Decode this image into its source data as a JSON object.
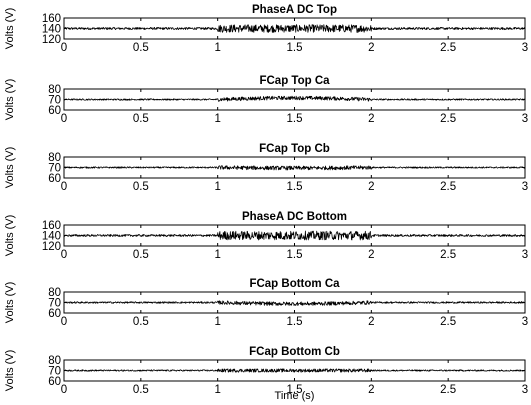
{
  "chart_data": {
    "type": "line",
    "time_range": [
      0,
      3
    ],
    "xticks": [
      0,
      0.5,
      1,
      1.5,
      2,
      2.5,
      3
    ],
    "xtick_labels": [
      "0",
      "0.5",
      "1",
      "1.5",
      "2",
      "2.5",
      "3"
    ],
    "xlabel": "Time (s)",
    "grid": false,
    "panels": [
      {
        "title": "PhaseA DC Top",
        "ylabel": "Volts (V)",
        "ylim": [
          120,
          160
        ],
        "yticks": [
          120,
          140,
          160
        ],
        "ytick_labels": [
          "120",
          "140",
          "160"
        ],
        "base": 140,
        "noise_normal": 2.2,
        "noise_disturbed": 7.5,
        "drift_disturbed": 0
      },
      {
        "title": "FCap Top Ca",
        "ylabel": "Volts (V)",
        "ylim": [
          60,
          80
        ],
        "yticks": [
          60,
          70,
          80
        ],
        "ytick_labels": [
          "60",
          "70",
          "80"
        ],
        "base": 70,
        "noise_normal": 0.7,
        "noise_disturbed": 1.8,
        "drift_disturbed": 1.5
      },
      {
        "title": "FCap Top Cb",
        "ylabel": "Volts (V)",
        "ylim": [
          60,
          80
        ],
        "yticks": [
          60,
          70,
          80
        ],
        "ytick_labels": [
          "60",
          "70",
          "80"
        ],
        "base": 70,
        "noise_normal": 0.7,
        "noise_disturbed": 1.9,
        "drift_disturbed": -0.5
      },
      {
        "title": "PhaseA DC Bottom",
        "ylabel": "Volts (V)",
        "ylim": [
          120,
          160
        ],
        "yticks": [
          120,
          140,
          160
        ],
        "ytick_labels": [
          "120",
          "140",
          "160"
        ],
        "base": 140,
        "noise_normal": 2.0,
        "noise_disturbed": 8.5,
        "drift_disturbed": 0
      },
      {
        "title": "FCap Bottom Ca",
        "ylabel": "Volts (V)",
        "ylim": [
          60,
          80
        ],
        "yticks": [
          60,
          70,
          80
        ],
        "ytick_labels": [
          "60",
          "70",
          "80"
        ],
        "base": 70,
        "noise_normal": 0.8,
        "noise_disturbed": 1.8,
        "drift_disturbed": -1.2
      },
      {
        "title": "FCap Bottom Cb",
        "ylabel": "Volts (V)",
        "ylim": [
          60,
          80
        ],
        "yticks": [
          60,
          70,
          80
        ],
        "ytick_labels": [
          "60",
          "70",
          "80"
        ],
        "base": 70,
        "noise_normal": 0.7,
        "noise_disturbed": 1.6,
        "drift_disturbed": 0
      }
    ],
    "disturbance_window": [
      1,
      2
    ]
  }
}
